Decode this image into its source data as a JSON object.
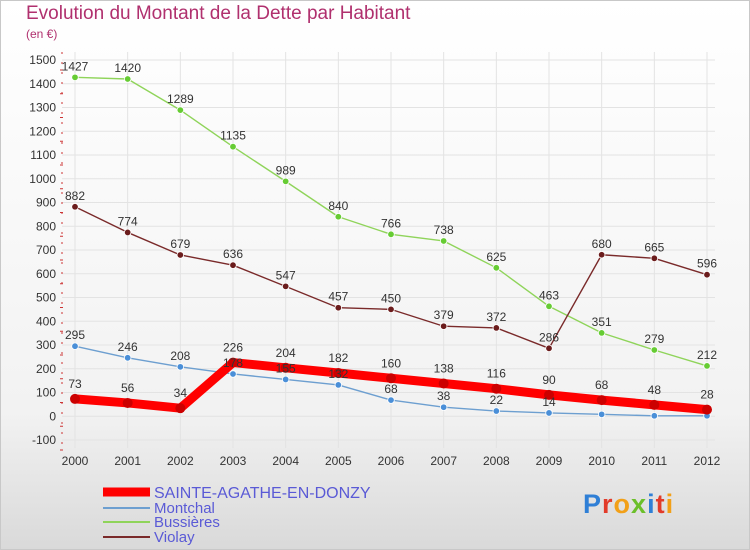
{
  "title": "Evolution du Montant de la Dette par Habitant",
  "subtitle": "(en €)",
  "logo_text": "Proxiti",
  "colors": {
    "title": "#b0306e",
    "legend_text": "#5a5ad6",
    "grid": "#e3e3e3",
    "background_top": "#ffffff",
    "background_bottom": "#dcdcdc"
  },
  "chart_data": {
    "type": "line",
    "categories": [
      "2000",
      "2001",
      "2002",
      "2003",
      "2004",
      "2005",
      "2006",
      "2007",
      "2008",
      "2009",
      "2010",
      "2011",
      "2012"
    ],
    "ylim": [
      -100,
      1500
    ],
    "yticks": [
      -100,
      0,
      100,
      200,
      300,
      400,
      500,
      600,
      700,
      800,
      900,
      1000,
      1100,
      1200,
      1300,
      1400,
      1500
    ],
    "grid": true,
    "legend_position": "bottom-left",
    "series": [
      {
        "name": "SAINTE-AGATHE-EN-DONZY",
        "color": "#ff0000",
        "marker_color": "#cc0000",
        "emphasis": true,
        "values": [
          73,
          56,
          34,
          226,
          204,
          182,
          160,
          138,
          116,
          90,
          68,
          48,
          28
        ],
        "labels": [
          "73",
          "56",
          "34",
          "226",
          "204",
          "182",
          "160",
          "138",
          "116",
          "90",
          "68",
          "48",
          "28"
        ]
      },
      {
        "name": "Montchal",
        "color": "#6d9fd0",
        "marker_color": "#4a8fd8",
        "emphasis": false,
        "values": [
          295,
          246,
          208,
          178,
          155,
          132,
          68,
          38,
          22,
          14,
          8,
          2,
          2
        ],
        "labels": [
          "295",
          "246",
          "208",
          "178",
          "155",
          "132",
          "68",
          "38",
          "22",
          "14",
          "",
          "",
          ""
        ]
      },
      {
        "name": "Bussières",
        "color": "#8fd45a",
        "marker_color": "#66cc33",
        "emphasis": false,
        "values": [
          1427,
          1420,
          1289,
          1135,
          989,
          840,
          766,
          738,
          625,
          463,
          351,
          279,
          212
        ],
        "labels": [
          "1427",
          "1420",
          "1289",
          "1135",
          "989",
          "840",
          "766",
          "738",
          "625",
          "463",
          "351",
          "279",
          "212"
        ]
      },
      {
        "name": "Violay",
        "color": "#7a2a2a",
        "marker_color": "#6b1c1c",
        "emphasis": false,
        "values": [
          882,
          774,
          679,
          636,
          547,
          457,
          450,
          379,
          372,
          286,
          680,
          665,
          596
        ],
        "labels": [
          "882",
          "774",
          "679",
          "636",
          "547",
          "457",
          "450",
          "379",
          "372",
          "286",
          "680",
          "665",
          "596"
        ]
      }
    ]
  }
}
